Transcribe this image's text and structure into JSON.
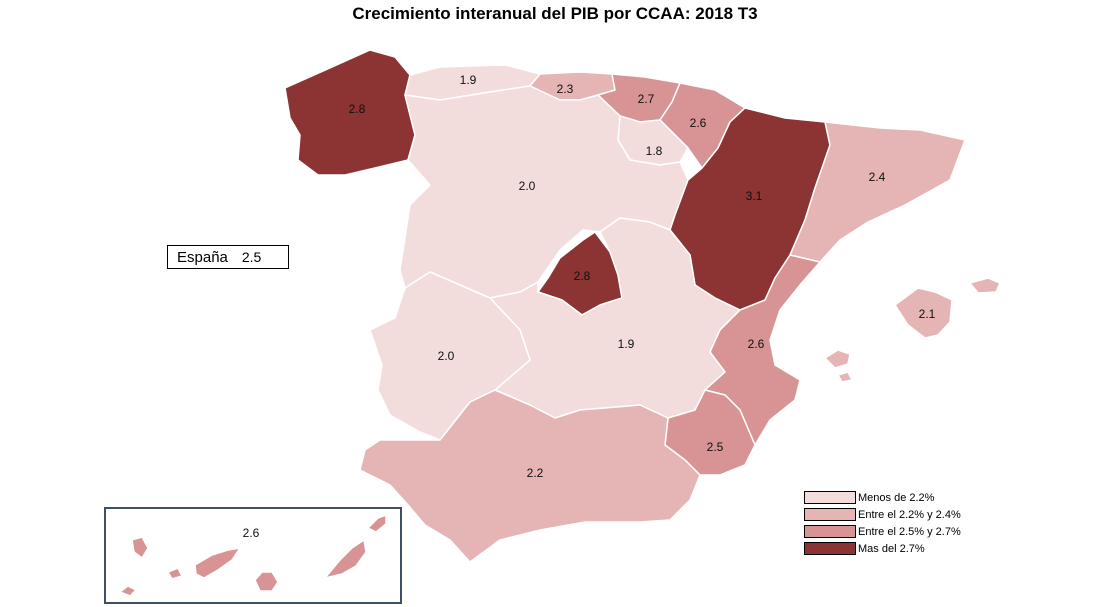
{
  "title": "Crecimiento interanual del PIB por CCAA: 2018 T3",
  "national": {
    "label": "España",
    "value": "2.5"
  },
  "colors": {
    "lt22": "#f2dcdc",
    "b22_24": "#e5b4b4",
    "b25_27": "#d89494",
    "gt27": "#8c3333",
    "inset_border": "#3d5066"
  },
  "legend": [
    {
      "label": "Menos de 2.2%",
      "color": "#f2dcdc"
    },
    {
      "label": "Entre el 2.2% y 2.4%",
      "color": "#e5b4b4"
    },
    {
      "label": "Entre el 2.5% y 2.7%",
      "color": "#d89494"
    },
    {
      "label": "Mas del 2.7%",
      "color": "#8c3333"
    }
  ],
  "regions": [
    {
      "name": "galicia",
      "value": "2.8"
    },
    {
      "name": "asturias",
      "value": "1.9"
    },
    {
      "name": "cantabria",
      "value": "2.3"
    },
    {
      "name": "pais-vasco",
      "value": "2.7"
    },
    {
      "name": "navarra",
      "value": "2.6"
    },
    {
      "name": "la-rioja",
      "value": "1.8"
    },
    {
      "name": "aragon",
      "value": "3.1"
    },
    {
      "name": "cataluna",
      "value": "2.4"
    },
    {
      "name": "castilla-y-leon",
      "value": "2.0"
    },
    {
      "name": "madrid",
      "value": "2.8"
    },
    {
      "name": "castilla-la-mancha",
      "value": "1.9"
    },
    {
      "name": "extremadura",
      "value": "2.0"
    },
    {
      "name": "comunitat-valenciana",
      "value": "2.6"
    },
    {
      "name": "baleares",
      "value": "2.1"
    },
    {
      "name": "murcia",
      "value": "2.5"
    },
    {
      "name": "andalucia",
      "value": "2.2"
    },
    {
      "name": "canarias",
      "value": "2.6"
    }
  ]
}
